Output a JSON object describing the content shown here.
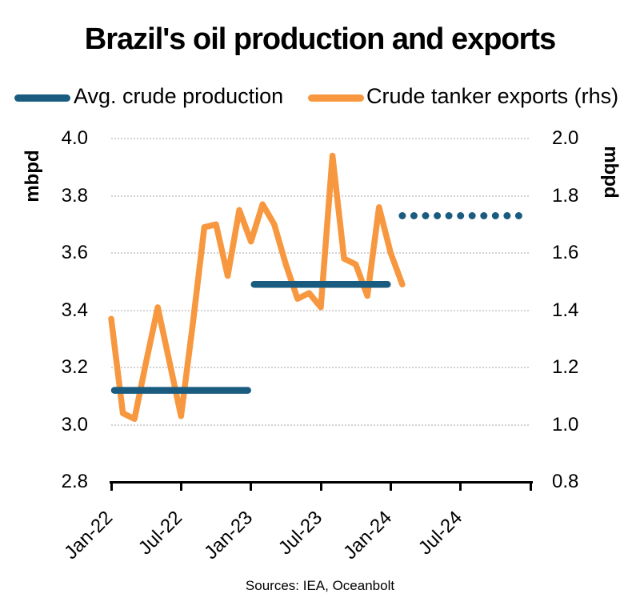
{
  "chart_data": {
    "type": "line",
    "title": "Brazil's oil production and exports",
    "source_note": "Sources: IEA, Oceanbolt",
    "legend": {
      "position": "top",
      "entries": [
        "Avg. crude production",
        "Crude tanker exports (rhs)"
      ]
    },
    "left_axis": {
      "label": "mbpd",
      "min": 2.8,
      "max": 4.0,
      "ticks": [
        "4.0",
        "3.8",
        "3.6",
        "3.4",
        "3.2",
        "3.0",
        "2.8"
      ]
    },
    "right_axis": {
      "label": "mbpd",
      "min": 0.8,
      "max": 2.0,
      "ticks": [
        "2.0",
        "1.8",
        "1.6",
        "1.4",
        "1.2",
        "1.0",
        "0.8"
      ]
    },
    "x_axis": {
      "start": "Jan-22",
      "end": "Jan-25",
      "months_total": 36,
      "tick_labels": [
        "Jan-22",
        "Jul-22",
        "Jan-23",
        "Jul-23",
        "Jan-24",
        "Jul-24"
      ]
    },
    "colors": {
      "production": "#1A5C80",
      "exports": "#F79840",
      "grid": "#D2D2D2",
      "axis": "#000000"
    },
    "series": [
      {
        "name": "Crude tanker exports (rhs)",
        "axis": "right",
        "color": "#F79840",
        "style": "line",
        "x": [
          "Jan-22",
          "Feb-22",
          "Mar-22",
          "Apr-22",
          "May-22",
          "Jun-22",
          "Jul-22",
          "Aug-22",
          "Sep-22",
          "Oct-22",
          "Nov-22",
          "Dec-22",
          "Jan-23",
          "Feb-23",
          "Mar-23",
          "Apr-23",
          "May-23",
          "Jun-23",
          "Jul-23",
          "Aug-23",
          "Sep-23",
          "Oct-23",
          "Nov-23",
          "Dec-23",
          "Jan-24",
          "Feb-24"
        ],
        "values": [
          1.37,
          1.04,
          1.02,
          1.22,
          1.41,
          1.22,
          1.03,
          1.35,
          1.69,
          1.7,
          1.52,
          1.75,
          1.64,
          1.77,
          1.7,
          1.56,
          1.44,
          1.46,
          1.41,
          1.94,
          1.58,
          1.56,
          1.45,
          1.76,
          1.6,
          1.49
        ]
      },
      {
        "name": "Avg. crude production",
        "axis": "left",
        "color": "#1A5C80",
        "style": "segments",
        "segments": [
          {
            "from": "Jan-22",
            "to": "Jan-23",
            "value": 3.12,
            "line": "solid"
          },
          {
            "from": "Jan-23",
            "to": "Jan-24",
            "value": 3.49,
            "line": "solid"
          },
          {
            "from": "Feb-24",
            "to": "Dec-24",
            "value": 3.73,
            "line": "dotted"
          }
        ]
      }
    ]
  }
}
